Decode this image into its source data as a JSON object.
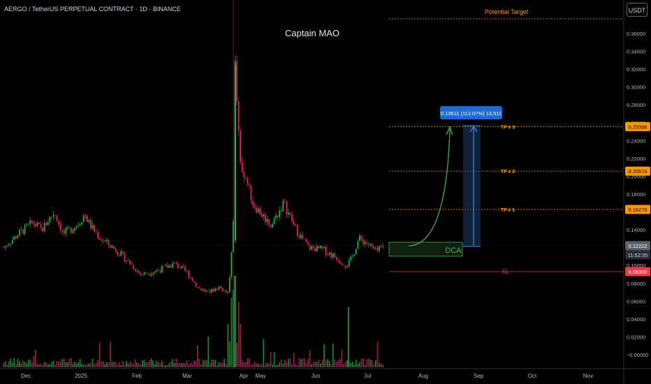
{
  "header": {
    "symbol_line": "AERGO / TetherUS PERPETUAL CONTRACT · 1D · BINANCE",
    "currency_button": "USDT"
  },
  "annotations": {
    "watermark": "Captain MAO",
    "potential_target": "Potential Target",
    "tp3": "TP # 3",
    "tp2": "TP # 2",
    "tp1": "TP # 1",
    "dca": "DCA",
    "sl": "SL",
    "measure_box": "0.13511 (112.07%) 13,511"
  },
  "price_badges": {
    "tp3": "0.25566",
    "tp2": "0.20574",
    "tp1": "0.16275",
    "current": "0.12222",
    "countdown": "11:52:35",
    "sl": "0.09300"
  },
  "colors": {
    "bull": "#26a69a",
    "bull_bright": "#1fb53f",
    "bear": "#e91e63",
    "target": "#ff9800",
    "sl": "#f23645",
    "measure": "#2962ff",
    "dca": "#4caf50"
  },
  "chart_data": {
    "type": "candlestick",
    "yaxis": {
      "ticks": [
        "0.36000",
        "0.34000",
        "0.32000",
        "0.30000",
        "0.28000",
        "0.26000",
        "0.24000",
        "0.22000",
        "0.20000",
        "0.18000",
        "0.16000",
        "0.14000",
        "0.12000",
        "0.10000",
        "0.08000",
        "0.06000",
        "0.04000",
        "0.02000",
        "−0.00000"
      ],
      "range": [
        -0.006,
        0.388
      ]
    },
    "xaxis": {
      "ticks": [
        "Dec",
        "2025",
        "Feb",
        "Mar",
        "Apr",
        "May",
        "Jun",
        "Jul",
        "Aug",
        "Sep",
        "Oct",
        "Nov"
      ]
    },
    "levels": {
      "potential_target": 0.375,
      "tp3": 0.25566,
      "tp2": 0.20574,
      "tp1": 0.16275,
      "dca_zone": [
        0.1175,
        0.1285
      ],
      "current": 0.12222,
      "sl": 0.093
    },
    "measurement": {
      "from": 0.1205,
      "to": 0.25566,
      "change": "0.13511",
      "percent": "112.07%",
      "ticks": "13,511"
    },
    "price_anchors": [
      {
        "date": "Nov 20",
        "close": 0.12
      },
      {
        "date": "Nov 28",
        "close": 0.135
      },
      {
        "date": "Dec 5",
        "close": 0.148
      },
      {
        "date": "Dec 10",
        "close": 0.14
      },
      {
        "date": "Dec 14",
        "close": 0.152
      },
      {
        "date": "Dec 17",
        "close": 0.16
      },
      {
        "date": "Dec 22",
        "close": 0.135
      },
      {
        "date": "Dec 26",
        "close": 0.14
      },
      {
        "date": "Dec 31",
        "close": 0.148
      },
      {
        "date": "Jan 3",
        "close": 0.158
      },
      {
        "date": "Jan 6",
        "close": 0.145
      },
      {
        "date": "Jan 12",
        "close": 0.13
      },
      {
        "date": "Jan 20",
        "close": 0.118
      },
      {
        "date": "Jan 27",
        "close": 0.105
      },
      {
        "date": "Feb 3",
        "close": 0.09
      },
      {
        "date": "Feb 10",
        "close": 0.093
      },
      {
        "date": "Feb 17",
        "close": 0.098
      },
      {
        "date": "Feb 22",
        "close": 0.102
      },
      {
        "date": "Mar 1",
        "close": 0.092
      },
      {
        "date": "Mar 8",
        "close": 0.075
      },
      {
        "date": "Mar 15",
        "close": 0.07
      },
      {
        "date": "Mar 22",
        "close": 0.076
      },
      {
        "date": "Mar 28",
        "close": 0.068
      },
      {
        "date": "Mar 31",
        "close": 0.142
      },
      {
        "date": "Apr 1",
        "close": 0.325
      },
      {
        "date": "Apr 3",
        "close": 0.295
      },
      {
        "date": "Apr 8",
        "close": 0.215
      },
      {
        "date": "Apr 15",
        "close": 0.195
      },
      {
        "date": "Apr 22",
        "close": 0.17
      },
      {
        "date": "Apr 30",
        "close": 0.16
      },
      {
        "date": "May 7",
        "close": 0.145
      },
      {
        "date": "May 14",
        "close": 0.17
      },
      {
        "date": "May 21",
        "close": 0.14
      },
      {
        "date": "May 28",
        "close": 0.12
      },
      {
        "date": "Jun 5",
        "close": 0.118
      },
      {
        "date": "Jun 12",
        "close": 0.11
      },
      {
        "date": "Jun 19",
        "close": 0.1
      },
      {
        "date": "Jun 22",
        "close": 0.108
      },
      {
        "date": "Jun 26",
        "close": 0.13
      },
      {
        "date": "Jul 1",
        "close": 0.125
      },
      {
        "date": "Jul 6",
        "close": 0.115
      },
      {
        "date": "Jul 10",
        "close": 0.121
      }
    ]
  }
}
